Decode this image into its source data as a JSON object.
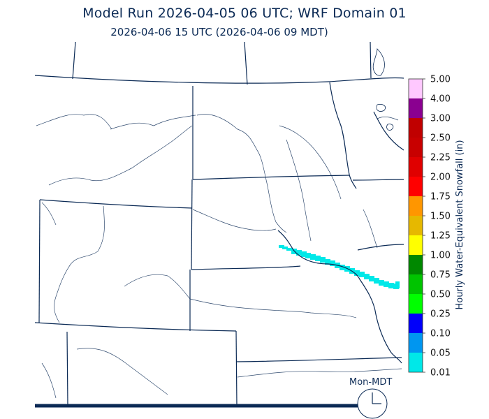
{
  "title": "Model Run 2026-04-05 06 UTC; WRF Domain 01",
  "subtitle": "2026-04-06 15 UTC  (2026-04-06 09 MDT)",
  "clock": {
    "label": "Mon-MDT"
  },
  "colorbar": {
    "title": "Hourly Water-Equivalent Snowfall (in)",
    "levels": [
      "0.01",
      "0.05",
      "0.10",
      "0.25",
      "0.50",
      "0.75",
      "1.00",
      "1.25",
      "1.50",
      "1.75",
      "2.00",
      "2.25",
      "2.50",
      "3.00",
      "4.00",
      "5.00"
    ],
    "colors": [
      "#00e8e8",
      "#0096f0",
      "#0000fa",
      "#00ff00",
      "#00c400",
      "#008800",
      "#ffff00",
      "#e6b800",
      "#ff9600",
      "#ff0000",
      "#e00000",
      "#c80000",
      "#c00000",
      "#8a0090",
      "#ff00ff",
      "#ffc8ff"
    ]
  },
  "snow_band": {
    "value_range_in": [
      "0.01",
      "0.05"
    ],
    "color": "#00e8e8"
  },
  "colors": {
    "boundary": "#0b2a55",
    "background": "#ffffff"
  }
}
